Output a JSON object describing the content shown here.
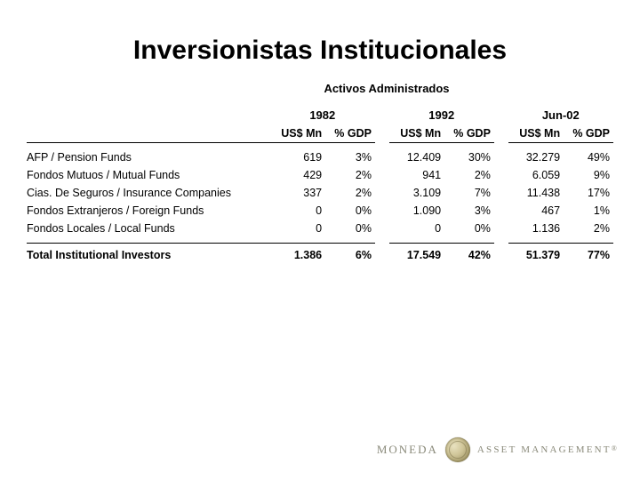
{
  "title": "Inversionistas Institucionales",
  "subtitle": "Activos Administrados",
  "columns": {
    "label": "",
    "usd": "US$ Mn",
    "gdp": "% GDP"
  },
  "periods": [
    "1982",
    "1992",
    "Jun-02"
  ],
  "rows": [
    {
      "label": "AFP  /  Pension Funds",
      "v": [
        "619",
        "3%",
        "12.409",
        "30%",
        "32.279",
        "49%"
      ]
    },
    {
      "label": "Fondos Mutuos  /  Mutual Funds",
      "v": [
        "429",
        "2%",
        "941",
        "2%",
        "6.059",
        "9%"
      ]
    },
    {
      "label": "Cias. De Seguros  /  Insurance Companies",
      "v": [
        "337",
        "2%",
        "3.109",
        "7%",
        "11.438",
        "17%"
      ]
    },
    {
      "label": "Fondos Extranjeros  /  Foreign Funds",
      "v": [
        "0",
        "0%",
        "1.090",
        "3%",
        "467",
        "1%"
      ]
    },
    {
      "label": "Fondos Locales /  Local Funds",
      "v": [
        "0",
        "0%",
        "0",
        "0%",
        "1.136",
        "2%"
      ]
    }
  ],
  "total": {
    "label": "Total Institutional Investors",
    "v": [
      "1.386",
      "6%",
      "17.549",
      "42%",
      "51.379",
      "77%"
    ]
  },
  "logo": {
    "brand": "MONEDA",
    "sub": "ASSET MANAGEMENT"
  },
  "style": {
    "title_fontsize": 30,
    "body_fontsize": 12.5,
    "text_color": "#000000",
    "background": "#ffffff",
    "rule_color": "#000000"
  }
}
